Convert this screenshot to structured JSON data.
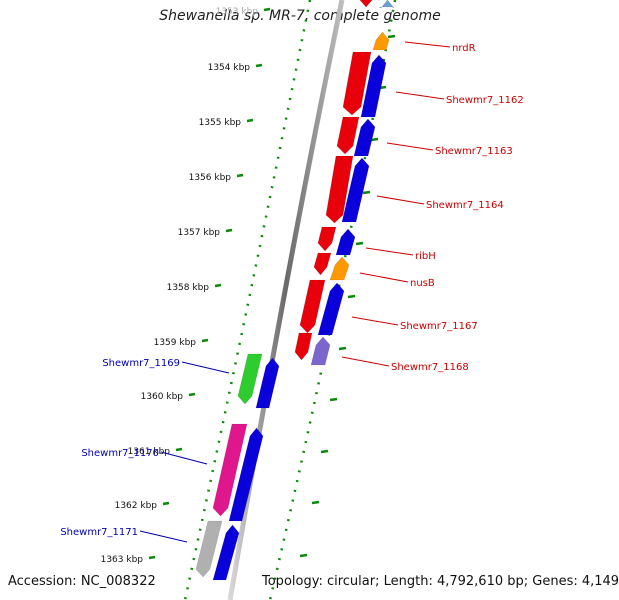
{
  "title": "Shewanella sp. MR-7, complete genome",
  "footer": {
    "accession": "Accession: NC_008322",
    "summary": "Topology: circular; Length: 4,792,610 bp; Genes: 4,149"
  },
  "kbp_labels": [
    "1353 kbp",
    "1354 kbp",
    "1355 kbp",
    "1356 kbp",
    "1357 kbp",
    "1358 kbp",
    "1359 kbp",
    "1360 kbp",
    "1361 kbp",
    "1362 kbp",
    "1363 kbp"
  ],
  "genes_right": [
    "nrdR",
    "Shewmr7_1162",
    "Shewmr7_1163",
    "Shewmr7_1164",
    "ribH",
    "nusB",
    "Shewmr7_1167",
    "Shewmr7_1168"
  ],
  "genes_left": [
    "Shewmr7_1169",
    "Shewmr7_1170",
    "Shewmr7_1171"
  ],
  "colors": {
    "red_gene": "#e8000b",
    "blue_gene": "#0a00d9",
    "orange_gene": "#ff9900",
    "green_gene": "#2ecc2e",
    "magenta_gene": "#e0168c",
    "gray_gene": "#b0b0b0",
    "purple_gene": "#7a66cc",
    "right_label": "#cc0000",
    "left_label": "#0000b0",
    "ticks": "#0a8a0a"
  }
}
